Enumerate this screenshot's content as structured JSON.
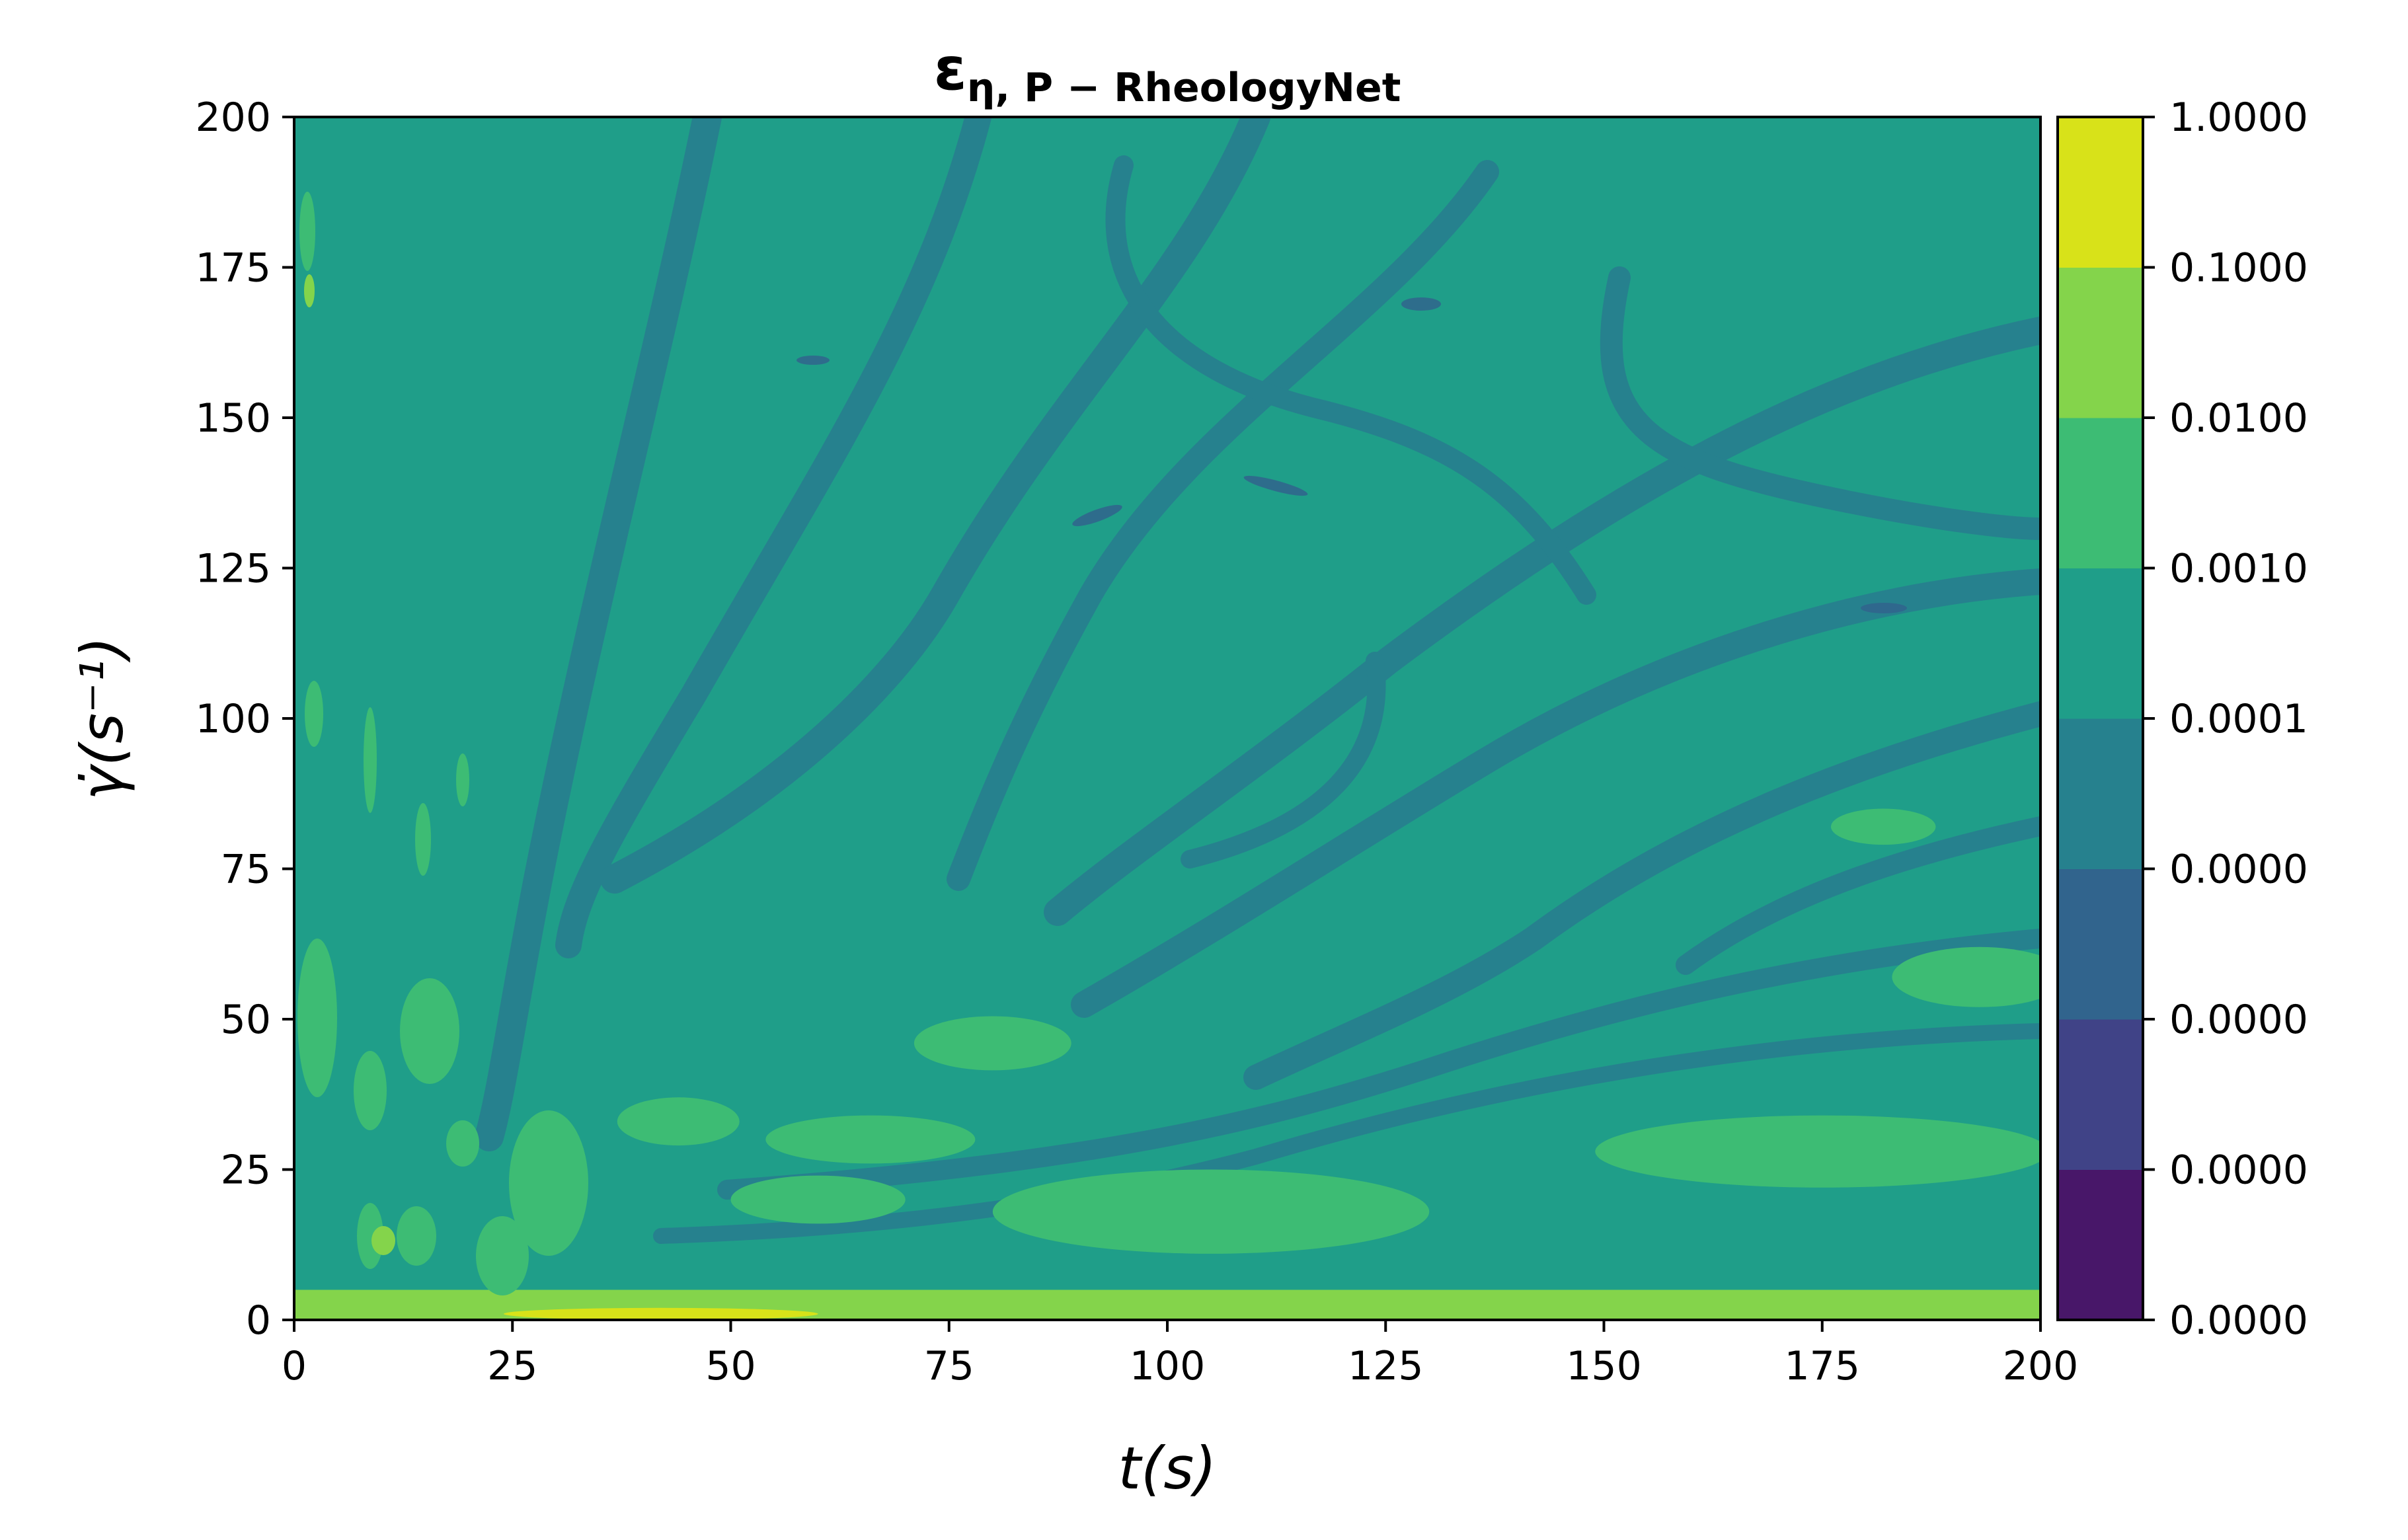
{
  "chart_data": {
    "type": "heatmap",
    "subtype": "filled-contour",
    "title": {
      "main": "ε",
      "subscript": "η, P − RheologyNet"
    },
    "xlabel": "t(s)",
    "ylabel": "γ̇(s⁻¹)",
    "xlim": [
      0,
      200
    ],
    "ylim": [
      0,
      200
    ],
    "x_ticks": [
      0,
      25,
      50,
      75,
      100,
      125,
      150,
      175,
      200
    ],
    "y_ticks": [
      0,
      25,
      50,
      75,
      100,
      125,
      150,
      175,
      200
    ],
    "colorbar": {
      "position": "right",
      "tick_labels": [
        "0.0000",
        "0.0000",
        "0.0000",
        "0.0000",
        "0.0001",
        "0.0010",
        "0.0100",
        "0.1000",
        "1.0000"
      ],
      "level_colors": [
        "#481769",
        "#404387",
        "#31648d",
        "#26818e",
        "#1f9e89",
        "#3dbc74",
        "#84d44b",
        "#d8e219"
      ]
    },
    "dominant_level_color": "#1f9e89",
    "regions": [
      {
        "level": 6,
        "shape": "band",
        "x": [
          0,
          200
        ],
        "y": [
          0,
          5
        ],
        "note": "strip near zero shear rate"
      },
      {
        "level": 7,
        "shape": "ellipse",
        "cx": 42,
        "cy": 1,
        "rx": 18,
        "ry": 1
      },
      {
        "level": 5,
        "shape": "ellipse",
        "cx": 80,
        "cy": 46,
        "rx": 9,
        "ry": 4.5
      },
      {
        "level": 5,
        "shape": "ellipse",
        "cx": 44,
        "cy": 33,
        "rx": 7,
        "ry": 4
      },
      {
        "level": 5,
        "shape": "ellipse",
        "cx": 66,
        "cy": 30,
        "rx": 12,
        "ry": 4
      },
      {
        "level": 5,
        "shape": "ellipse",
        "cx": 60,
        "cy": 20,
        "rx": 10,
        "ry": 4
      },
      {
        "level": 5,
        "shape": "ellipse",
        "cx": 105,
        "cy": 18,
        "rx": 25,
        "ry": 7
      },
      {
        "level": 5,
        "shape": "ellipse",
        "cx": 175,
        "cy": 28,
        "rx": 26,
        "ry": 6
      },
      {
        "level": 5,
        "shape": "ellipse",
        "cx": 182,
        "cy": 82,
        "rx": 6,
        "ry": 3
      },
      {
        "level": 5,
        "shape": "ellipse",
        "cx": 193,
        "cy": 57,
        "rx": 10,
        "ry": 5
      }
    ]
  }
}
